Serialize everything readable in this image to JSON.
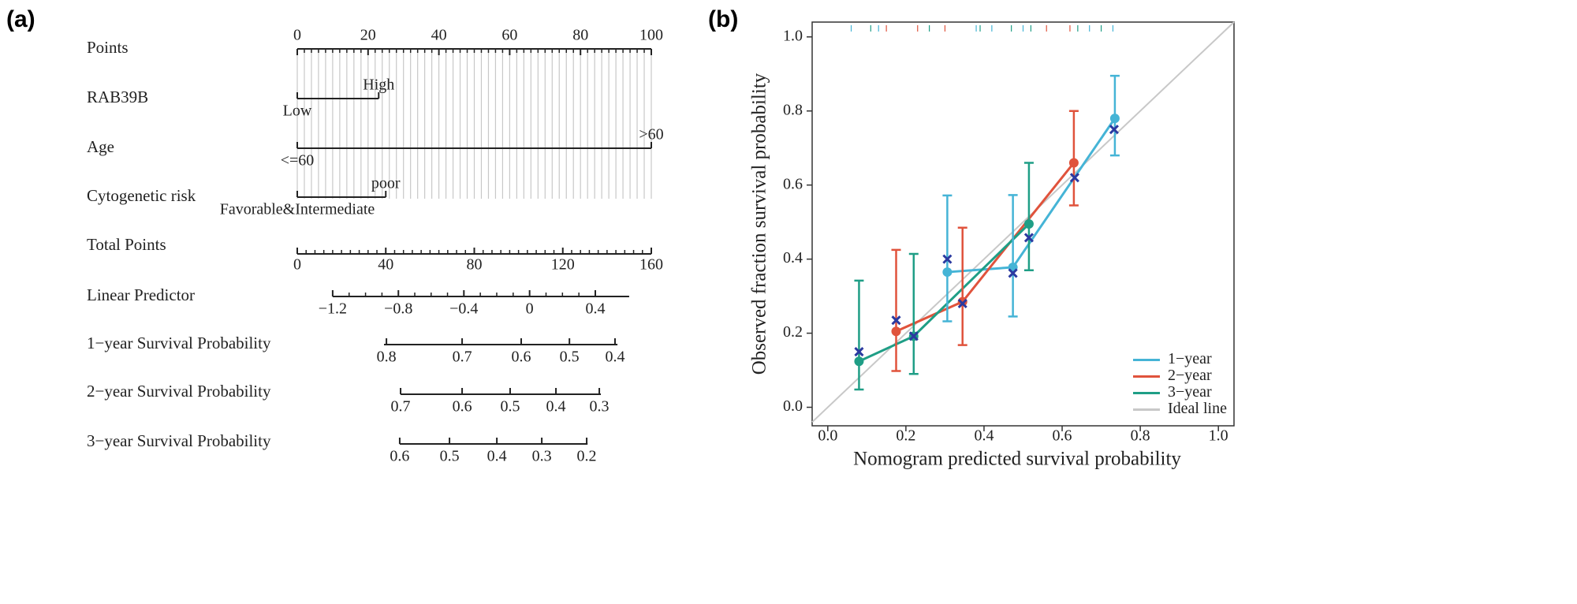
{
  "chart_data": [
    {
      "type": "nomogram",
      "panel_label": "(a)",
      "rows": [
        {
          "label": "Points",
          "kind": "points",
          "xlim": [
            0,
            100
          ],
          "ticks": [
            0,
            20,
            40,
            60,
            80,
            100
          ],
          "minor_per_interval": 9
        },
        {
          "label": "RAB39B",
          "kind": "factor",
          "levels": [
            "Low",
            "High"
          ],
          "points": [
            0,
            23
          ]
        },
        {
          "label": "Age",
          "kind": "factor",
          "levels": [
            "<=60",
            ">60"
          ],
          "points": [
            0,
            100
          ]
        },
        {
          "label": "Cytogenetic risk",
          "kind": "factor",
          "levels": [
            "Favorable&Intermediate",
            "poor"
          ],
          "points": [
            0,
            25
          ]
        },
        {
          "label": "Total Points",
          "kind": "total",
          "xlim": [
            0,
            160
          ],
          "ticks": [
            0,
            40,
            80,
            120,
            160
          ],
          "minor_per_interval": 9
        },
        {
          "label": "Linear Predictor",
          "kind": "scale",
          "range": [
            16,
            150
          ],
          "ticks": [
            {
              "value": -1.2,
              "label": "−1.2"
            },
            {
              "value": -0.8,
              "label": "−0.8"
            },
            {
              "value": -0.4,
              "label": "−0.4"
            },
            0,
            0.4
          ],
          "tick_points": [
            16,
            45.7,
            75.3,
            105,
            134.7
          ],
          "minor_per_interval": 3
        },
        {
          "label": "1−year Survival Probability",
          "kind": "scale",
          "range": [
            39.2,
            144.7
          ],
          "ticks": [
            0.8,
            0.7,
            0.6,
            0.5,
            0.4
          ],
          "tick_points": [
            40.3,
            74.5,
            101.2,
            123,
            143.6
          ]
        },
        {
          "label": "2−year Survival Probability",
          "kind": "scale",
          "range": [
            46.7,
            137.2
          ],
          "ticks": [
            0.7,
            0.6,
            0.5,
            0.4,
            0.3
          ],
          "tick_points": [
            46.7,
            74.5,
            96.2,
            116.9,
            136.5
          ]
        },
        {
          "label": "3−year Survival Probability",
          "kind": "scale",
          "range": [
            46.3,
            131.2
          ],
          "ticks": [
            0.6,
            0.5,
            0.4,
            0.3,
            0.2
          ],
          "tick_points": [
            46.3,
            68.8,
            90.2,
            110.5,
            130.8
          ]
        }
      ]
    },
    {
      "type": "line",
      "panel_label": "(b)",
      "xlabel": "Nomogram predicted survival probability",
      "ylabel": "Observed fraction survival probability",
      "xlim": [
        -0.04,
        1.04
      ],
      "ylim": [
        -0.05,
        1.04
      ],
      "xticks": [
        {
          "value": 0,
          "label": "0.0"
        },
        0.2,
        0.4,
        0.6,
        0.8,
        {
          "value": 1,
          "label": "1.0"
        }
      ],
      "yticks": [
        {
          "value": 0,
          "label": "0.0"
        },
        0.2,
        0.4,
        0.6,
        0.8,
        {
          "value": 1,
          "label": "1.0"
        }
      ],
      "legend": "lower right",
      "series": [
        {
          "name": "1−year",
          "color": "#45b4d6",
          "x": [
            0.306,
            0.474,
            0.735
          ],
          "values": [
            0.365,
            0.378,
            0.78
          ],
          "lower": [
            0.232,
            0.245,
            0.68
          ],
          "upper": [
            0.572,
            0.573,
            0.895
          ],
          "rug": [
            0.06,
            0.13,
            0.38,
            0.42,
            0.5,
            0.67,
            0.73
          ]
        },
        {
          "name": "2−year",
          "color": "#e0533c",
          "x": [
            0.175,
            0.345,
            0.63
          ],
          "values": [
            0.205,
            0.285,
            0.66
          ],
          "lower": [
            0.098,
            0.168,
            0.545
          ],
          "upper": [
            0.425,
            0.485,
            0.8
          ],
          "rug": [
            0.15,
            0.23,
            0.3,
            0.56,
            0.62
          ]
        },
        {
          "name": "3−year",
          "color": "#1f9e86",
          "x": [
            0.08,
            0.22,
            0.515
          ],
          "values": [
            0.124,
            0.192,
            0.495
          ],
          "lower": [
            0.048,
            0.09,
            0.37
          ],
          "upper": [
            0.342,
            0.414,
            0.66
          ],
          "rug": [
            0.11,
            0.26,
            0.39,
            0.47,
            0.52,
            0.64,
            0.7
          ]
        },
        {
          "name": "Ideal line",
          "color": "#c8c8c8",
          "x": [
            -0.04,
            1.04
          ],
          "values": [
            -0.04,
            1.04
          ]
        }
      ],
      "markers": {
        "color": "#2b3aa0",
        "x": [
          0.08,
          0.175,
          0.22,
          0.306,
          0.345,
          0.474,
          0.515,
          0.632,
          0.733
        ],
        "values": [
          0.15,
          0.235,
          0.192,
          0.4,
          0.28,
          0.362,
          0.458,
          0.62,
          0.75
        ]
      }
    }
  ]
}
